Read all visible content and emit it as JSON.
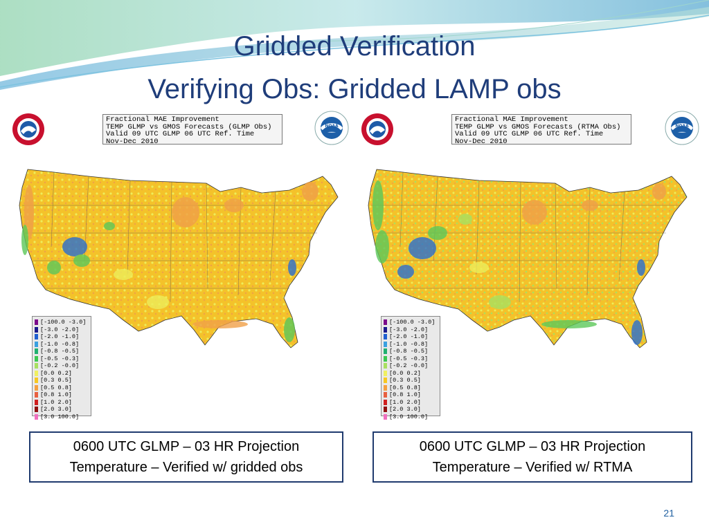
{
  "slide": {
    "title_line1": "Gridded Verification",
    "title_line2": "Verifying Obs: Gridded LAMP obs",
    "page_number": "21"
  },
  "panels": [
    {
      "info_lines": [
        "Fractional MAE Improvement",
        "TEMP GLMP vs GMOS Forecasts (GLMP Obs)",
        "Valid 09 UTC GLMP 06 UTC Ref. Time",
        "Nov-Dec 2010"
      ],
      "caption_line1": "0600 UTC GLMP – 03 HR Projection",
      "caption_line2": "Temperature – Verified w/ gridded obs"
    },
    {
      "info_lines": [
        "Fractional MAE Improvement",
        "TEMP GLMP vs GMOS Forecasts (RTMA Obs)",
        "Valid 09 UTC GLMP 06 UTC Ref. Time",
        "Nov-Dec 2010"
      ],
      "caption_line1": "0600 UTC GLMP – 03 HR Projection",
      "caption_line2": "Temperature – Verified w/ RTMA"
    }
  ],
  "legend": [
    {
      "label": "[-100.0 -3.0]",
      "color": "#7a0a8a"
    },
    {
      "label": "[-3.0 -2.0]",
      "color": "#1a1a8c"
    },
    {
      "label": "[-2.0 -1.0]",
      "color": "#1f5fd0"
    },
    {
      "label": "[-1.0 -0.8]",
      "color": "#3aa0e0"
    },
    {
      "label": "[-0.8 -0.5]",
      "color": "#20b070"
    },
    {
      "label": "[-0.5 -0.3]",
      "color": "#3cc850"
    },
    {
      "label": "[-0.2 -0.0]",
      "color": "#a8e060"
    },
    {
      "label": "[0.0 0.2]",
      "color": "#f0f060"
    },
    {
      "label": "[0.3 0.5]",
      "color": "#f7c820"
    },
    {
      "label": "[0.5 0.8]",
      "color": "#f5a040"
    },
    {
      "label": "[0.8 1.0]",
      "color": "#e86040"
    },
    {
      "label": "[1.0 2.0]",
      "color": "#d02020"
    },
    {
      "label": "[2.0 3.0]",
      "color": "#901010"
    },
    {
      "label": "[3.0 100.0]",
      "color": "#f070c0"
    }
  ],
  "colors": {
    "title": "#1f3d7a",
    "caption_border": "#1f3a6e",
    "map_base": "#f4c22a",
    "map_light": "#eded5a",
    "map_orange": "#f0a048",
    "map_green": "#5cc85a",
    "map_blue": "#2a6fd0"
  },
  "icons": [
    "nws-logo-icon",
    "noaa-logo-icon"
  ]
}
